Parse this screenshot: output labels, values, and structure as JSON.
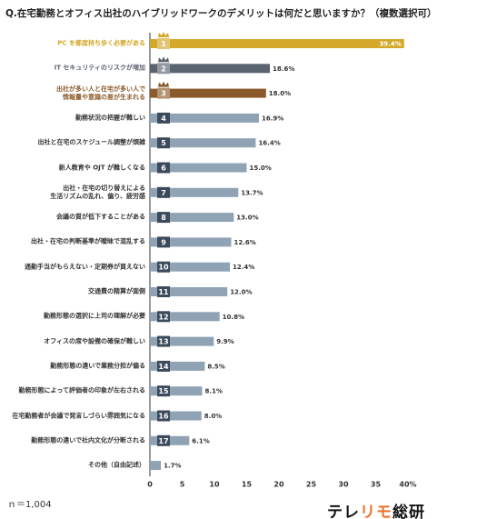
{
  "chart_data": {
    "type": "barh",
    "title": "Q.在宅勤務とオフィス出社のハイブリッドワークのデメリットは何だと思いますか？（複数選択可）",
    "categories": [
      "PC を都度持ち歩く必要がある",
      "IT セキュリティのリスクが増加",
      "出社が多い人と在宅が多い人で\n情報量や意識の差が生まれる",
      "勤務状況の把握が難しい",
      "出社と在宅のスケジュール調整が煩雑",
      "新人教育や OJT が難しくなる",
      "出社・在宅の切り替えによる\n生活リズムの乱れ、偏り、疲労感",
      "会議の質が低下することがある",
      "出社・在宅の判断基準が曖昧で混乱する",
      "通勤手当がもらえない・定期券が買えない",
      "交通費の精算が面倒",
      "勤務形態の選択に上司の理解が必要",
      "オフィスの席や設備の確保が難しい",
      "勤務形態の違いで業務分担が偏る",
      "勤務形態によって評価者の印象が左右される",
      "在宅勤務者が会議で発言しづらい雰囲気になる",
      "勤務形態の違いで社内文化が分断される",
      "その他（自由記述）"
    ],
    "ranks": [
      1,
      2,
      3,
      4,
      5,
      6,
      7,
      8,
      9,
      10,
      11,
      12,
      13,
      14,
      15,
      16,
      17,
      null
    ],
    "values": [
      39.4,
      18.6,
      18.0,
      16.9,
      16.4,
      15.0,
      13.7,
      13.0,
      12.6,
      12.4,
      12.0,
      10.8,
      9.9,
      8.5,
      8.1,
      8.0,
      6.1,
      1.7
    ],
    "value_labels": [
      "39.4%",
      "18.6%",
      "18.0%",
      "16.9%",
      "16.4%",
      "15.0%",
      "13.7%",
      "13.0%",
      "12.6%",
      "12.4%",
      "12.0%",
      "10.8%",
      "9.9%",
      "8.5%",
      "8.1%",
      "8.0%",
      "6.1%",
      "1.7%"
    ],
    "colors": [
      "#d4a82a",
      "#5a6470",
      "#8b5a2b",
      "#8fa3b5",
      "#8fa3b5",
      "#8fa3b5",
      "#8fa3b5",
      "#8fa3b5",
      "#8fa3b5",
      "#8fa3b5",
      "#8fa3b5",
      "#8fa3b5",
      "#8fa3b5",
      "#8fa3b5",
      "#8fa3b5",
      "#8fa3b5",
      "#8fa3b5",
      "#8fa3b5"
    ],
    "xlim": [
      0,
      40
    ],
    "xticks": [
      0,
      5,
      10,
      15,
      20,
      25,
      30,
      35,
      {
        "value": 40,
        "label": "40%"
      }
    ],
    "note": "ｎ＝1,004",
    "brand": [
      "テレ",
      "リモ",
      "総研"
    ]
  }
}
